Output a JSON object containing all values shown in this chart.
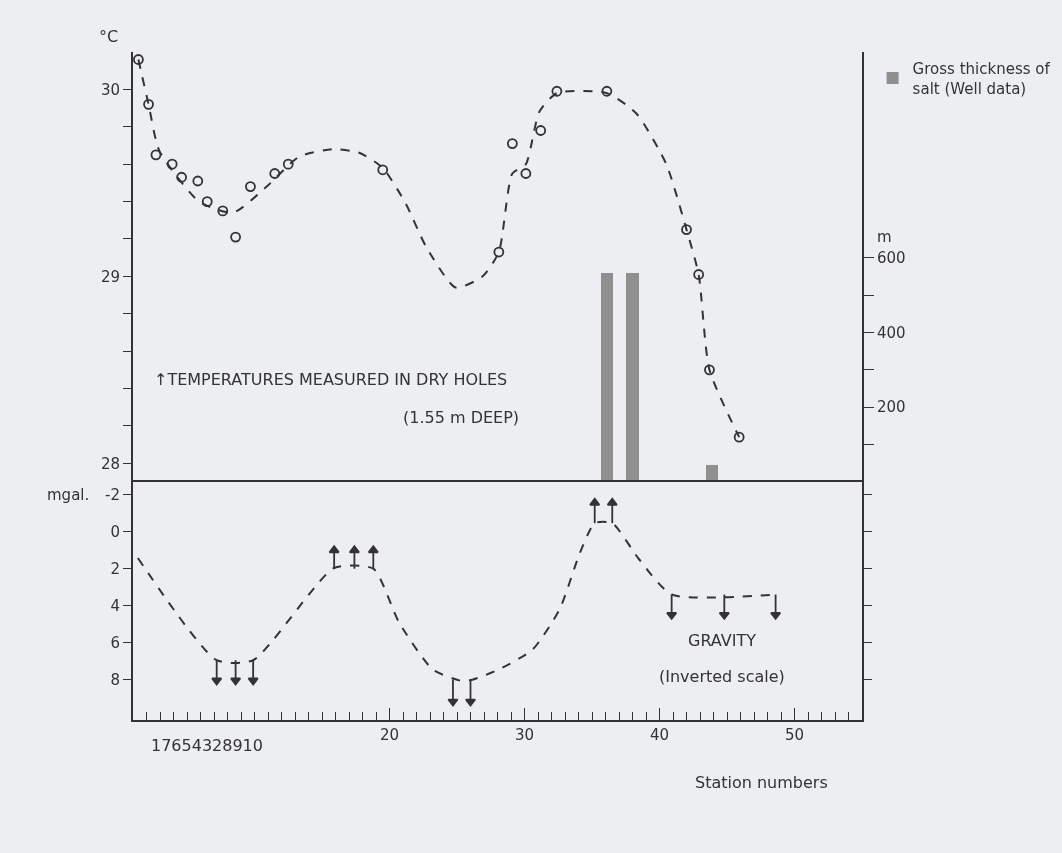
{
  "chart_data": [
    {
      "type": "line",
      "ylabel": "°C",
      "y2label": "m",
      "xlim": [
        1,
        55
      ],
      "ylim": [
        27.9,
        30.2
      ],
      "yticks": [
        28,
        {
          "value": 28.2,
          "label": null
        },
        {
          "value": 28.4,
          "label": null
        },
        {
          "value": 28.6,
          "label": null
        },
        {
          "value": 28.8,
          "label": null
        },
        29,
        {
          "value": 29.2,
          "label": null
        },
        {
          "value": 29.4,
          "label": null
        },
        {
          "value": 29.6,
          "label": null
        },
        {
          "value": 29.8,
          "label": null
        },
        30
      ],
      "y2lim": [
        0,
        1150
      ],
      "y2ticks": [
        {
          "value": 100,
          "label": null
        },
        200,
        {
          "value": 300,
          "label": null
        },
        400,
        {
          "value": 500,
          "label": null
        },
        600
      ],
      "tick_labels": "y",
      "legend": "top right",
      "annotations": [
        "↑TEMPERATURES MEASURED IN DRY HOLES",
        "(1.55 m DEEP)"
      ],
      "series": [
        {
          "type": "scatter",
          "color": "#333333",
          "marker": "circle",
          "x": [
            1.4,
            2.15,
            2.7,
            3.9,
            4.6,
            5.8,
            6.5,
            7.65,
            8.6,
            9.7,
            11.5,
            12.5,
            19.5,
            28.1,
            29.1,
            30.1,
            31.2,
            32.4,
            36.1,
            42.0,
            42.9,
            43.7,
            45.9
          ],
          "values": [
            30.16,
            29.92,
            29.65,
            29.6,
            29.53,
            29.51,
            29.4,
            29.35,
            29.21,
            29.48,
            29.55,
            29.6,
            29.57,
            29.13,
            29.71,
            29.55,
            29.78,
            29.99,
            29.99,
            29.25,
            29.01,
            28.5,
            28.14
          ]
        },
        {
          "color": "#333333",
          "line_style": "dashed",
          "x": [
            1.4,
            2.15,
            2.96,
            5.9,
            8.4,
            10.9,
            13.3,
            15.8,
            17.8,
            19.5,
            21.2,
            22.7,
            24.9,
            26.9,
            28.1,
            29.1,
            30.1,
            31.1,
            32.4,
            36.1,
            38.3,
            40.5,
            42.0,
            42.9,
            43.7,
            45.9
          ],
          "values": [
            30.16,
            29.92,
            29.67,
            29.4,
            29.34,
            29.48,
            29.64,
            29.68,
            29.66,
            29.58,
            29.39,
            29.16,
            28.94,
            29.0,
            29.13,
            29.55,
            29.6,
            29.88,
            29.98,
            29.98,
            29.87,
            29.6,
            29.25,
            29.01,
            28.5,
            28.14
          ]
        },
        {
          "type": "bar",
          "axis": "y2",
          "name": "Gross thickness of salt (Well data)",
          "color": "#8f8f8f",
          "x": [
            36.1,
            38.0,
            43.9
          ],
          "values": [
            560,
            560,
            45
          ]
        }
      ]
    },
    {
      "type": "line",
      "ylabel": "mgal.",
      "xlabel": "Station numbers",
      "xlim": [
        1,
        55
      ],
      "xticks": [
        20,
        30,
        40,
        50
      ],
      "ylim": [
        10.2,
        -2.7
      ],
      "yticks": [
        -2,
        0,
        2,
        4,
        6,
        8
      ],
      "annotations": [
        "GRAVITY",
        "(Inverted scale)",
        "17654328910"
      ],
      "series": [
        {
          "color": "#333333",
          "line_style": "dashed",
          "x": [
            1.36,
            7.2,
            9.9,
            15.9,
            18.8,
            20.7,
            23.2,
            25.4,
            26.2,
            28.1,
            30.6,
            32.6,
            34.1,
            35.2,
            36.5,
            38.5,
            40.9,
            48.6
          ],
          "values": [
            1.42,
            6.96,
            6.96,
            1.96,
            2.0,
            4.9,
            7.46,
            8.09,
            8.0,
            7.46,
            6.38,
            4.2,
            1.15,
            -0.47,
            -0.47,
            1.5,
            3.4,
            3.4
          ]
        },
        {
          "type": "scatter",
          "color": "#333333",
          "marker": "triangle",
          "x": [
            7.2,
            8.6,
            9.9,
            15.9,
            17.4,
            18.8,
            24.7,
            26.0,
            35.2,
            36.5,
            40.9,
            44.8,
            48.6
          ],
          "values": [
            8.06,
            8.06,
            8.06,
            1.0,
            1.0,
            1.0,
            9.2,
            9.2,
            -1.57,
            -1.57,
            4.5,
            4.5,
            4.5
          ],
          "errors": [
            [
              6.96,
              8.06
            ],
            [
              6.96,
              8.06
            ],
            [
              6.96,
              8.06
            ],
            [
              1.0,
              2.0
            ],
            [
              1.0,
              2.0
            ],
            [
              1.0,
              2.0
            ],
            [
              8.0,
              9.2
            ],
            [
              8.0,
              9.2
            ],
            [
              -1.57,
              -0.47
            ],
            [
              -1.57,
              -0.47
            ],
            [
              3.4,
              4.5
            ],
            [
              3.4,
              4.5
            ],
            [
              3.4,
              4.5
            ]
          ]
        }
      ]
    }
  ]
}
